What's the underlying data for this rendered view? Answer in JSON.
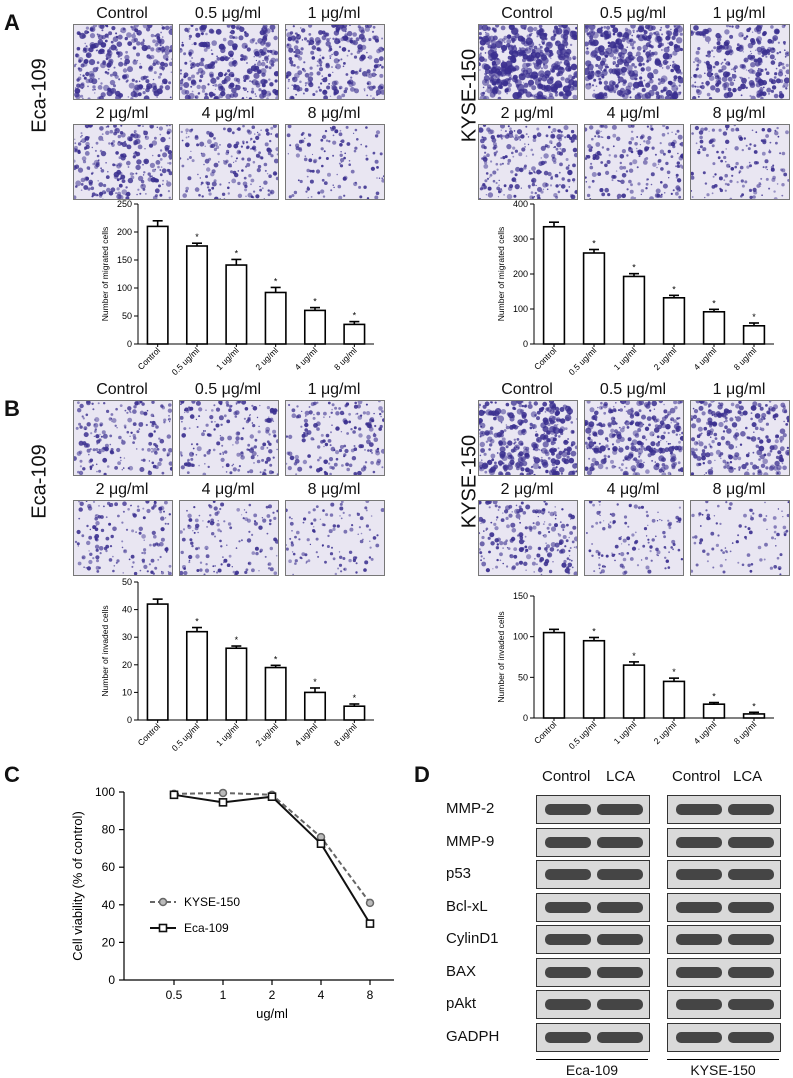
{
  "panels": {
    "a": "A",
    "b": "B",
    "c": "C",
    "d": "D"
  },
  "cell_lines": {
    "eca": "Eca-109",
    "kyse": "KYSE-150"
  },
  "doses": [
    "Control",
    "0.5 μg/ml",
    "1 μg/ml",
    "2 μg/ml",
    "4 μg/ml",
    "8 μg/ml"
  ],
  "colors": {
    "stain_dark": "#3a2f8f",
    "stain_light": "#e9e6f2",
    "blot_band": "#2a2a2a"
  },
  "panelA": {
    "eca_density": [
      0.55,
      0.55,
      0.5,
      0.45,
      0.3,
      0.15
    ],
    "kyse_density": [
      0.85,
      0.75,
      0.55,
      0.4,
      0.3,
      0.2
    ]
  },
  "panelB": {
    "eca_density": [
      0.3,
      0.3,
      0.28,
      0.22,
      0.18,
      0.12
    ],
    "kyse_density": [
      0.65,
      0.55,
      0.45,
      0.35,
      0.15,
      0.08
    ]
  },
  "chart_data": [
    {
      "id": "A-left",
      "type": "bar",
      "categories": [
        "Control",
        "0.5 ug/ml",
        "1 ug/ml",
        "2 ug/ml",
        "4 ug/ml",
        "8 ug/ml"
      ],
      "values": [
        210,
        175,
        141,
        92,
        60,
        35
      ],
      "errors": [
        10,
        5,
        10,
        9,
        5,
        5
      ],
      "significance": [
        "",
        "*",
        "*",
        "*",
        "*",
        "*"
      ],
      "ylabel": "Number of migrated cells",
      "ylim": [
        0,
        250
      ],
      "yticks": [
        0,
        50,
        100,
        150,
        200,
        250
      ]
    },
    {
      "id": "A-right",
      "type": "bar",
      "categories": [
        "Control",
        "0.5 ug/ml",
        "1 ug/ml",
        "2 ug/ml",
        "4 ug/ml",
        "8 ug/ml"
      ],
      "values": [
        335,
        260,
        193,
        132,
        92,
        52
      ],
      "errors": [
        13,
        10,
        8,
        7,
        7,
        8
      ],
      "significance": [
        "",
        "*",
        "*",
        "*",
        "*",
        "*"
      ],
      "ylabel": "Number of migrated cells",
      "ylim": [
        0,
        400
      ],
      "yticks": [
        0,
        100,
        200,
        300,
        400
      ]
    },
    {
      "id": "B-left",
      "type": "bar",
      "categories": [
        "Control",
        "0.5 ug/ml",
        "1 ug/ml",
        "2 ug/ml",
        "4 ug/ml",
        "8 ug/ml"
      ],
      "values": [
        42,
        32,
        26,
        19,
        10,
        5
      ],
      "errors": [
        1.8,
        1.5,
        0.8,
        0.8,
        1.6,
        0.8
      ],
      "significance": [
        "",
        "*",
        "*",
        "*",
        "*",
        "*"
      ],
      "ylabel": "Number of invaded cells",
      "ylim": [
        0,
        50
      ],
      "yticks": [
        0,
        10,
        20,
        30,
        40,
        50
      ]
    },
    {
      "id": "B-right",
      "type": "bar",
      "categories": [
        "Control",
        "0.5 ug/ml",
        "1 ug/ml",
        "2 ug/ml",
        "4 ug/ml",
        "8 ug/ml"
      ],
      "values": [
        105,
        95,
        65,
        45,
        17,
        5
      ],
      "errors": [
        4,
        4,
        4,
        4,
        2,
        2
      ],
      "significance": [
        "",
        "*",
        "*",
        "*",
        "*",
        "*"
      ],
      "ylabel": "Number of invaded cells",
      "ylim": [
        0,
        150
      ],
      "yticks": [
        0,
        50,
        100,
        150
      ]
    },
    {
      "id": "C",
      "type": "line",
      "x": [
        "0.5",
        "1",
        "2",
        "4",
        "8"
      ],
      "series": [
        {
          "name": "KYSE-150",
          "values": [
            99,
            99.5,
            98.5,
            76,
            41
          ],
          "color": "#666666",
          "style": "dashed",
          "marker": "circle"
        },
        {
          "name": "Eca-109",
          "values": [
            98.5,
            94.5,
            97.5,
            72.5,
            30
          ],
          "color": "#111111",
          "style": "solid",
          "marker": "square"
        }
      ],
      "xlabel": "ug/ml",
      "ylabel": "Cell viability (% of control)",
      "ylim": [
        0,
        100
      ],
      "yticks": [
        0,
        20,
        40,
        60,
        80,
        100
      ]
    }
  ],
  "blots": {
    "headers": [
      "Control",
      "LCA",
      "Control",
      "LCA"
    ],
    "proteins": [
      "MMP-2",
      "MMP-9",
      "p53",
      "Bcl-xL",
      "CylinD1",
      "BAX",
      "pAkt",
      "GADPH"
    ],
    "footers": [
      "Eca-109",
      "KYSE-150"
    ]
  }
}
